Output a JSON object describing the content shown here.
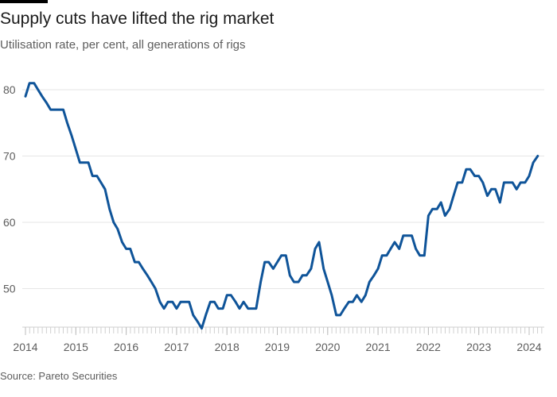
{
  "chart_data": {
    "type": "line",
    "title": "Supply cuts have lifted the rig market",
    "subtitle": "Utilisation rate, per cent, all generations of rigs",
    "source": "Source: Pareto Securities",
    "xlabel": "",
    "ylabel": "",
    "x_range": [
      2014.0,
      2024.6
    ],
    "ylim": [
      43,
      83
    ],
    "y_ticks": [
      80,
      70,
      60,
      50
    ],
    "x_ticks": [
      "2014",
      "2015",
      "2016",
      "2017",
      "2018",
      "2019",
      "2020",
      "2021",
      "2022",
      "2023",
      "2024"
    ],
    "grid": "horizontal",
    "line_color": "#0f5499",
    "series": [
      {
        "name": "",
        "points": [
          [
            2014.0,
            79
          ],
          [
            2014.08,
            81
          ],
          [
            2014.17,
            81
          ],
          [
            2014.25,
            80
          ],
          [
            2014.33,
            79
          ],
          [
            2014.42,
            78
          ],
          [
            2014.5,
            77
          ],
          [
            2014.58,
            77
          ],
          [
            2014.67,
            77
          ],
          [
            2014.75,
            77
          ],
          [
            2014.83,
            75
          ],
          [
            2014.92,
            73
          ],
          [
            2015.0,
            71
          ],
          [
            2015.08,
            69
          ],
          [
            2015.17,
            69
          ],
          [
            2015.25,
            69
          ],
          [
            2015.33,
            67
          ],
          [
            2015.42,
            67
          ],
          [
            2015.5,
            66
          ],
          [
            2015.58,
            65
          ],
          [
            2015.67,
            62
          ],
          [
            2015.75,
            60
          ],
          [
            2015.83,
            59
          ],
          [
            2015.92,
            57
          ],
          [
            2016.0,
            56
          ],
          [
            2016.08,
            56
          ],
          [
            2016.17,
            54
          ],
          [
            2016.25,
            54
          ],
          [
            2016.33,
            53
          ],
          [
            2016.42,
            52
          ],
          [
            2016.5,
            51
          ],
          [
            2016.58,
            50
          ],
          [
            2016.67,
            48
          ],
          [
            2016.75,
            47
          ],
          [
            2016.83,
            48
          ],
          [
            2016.92,
            48
          ],
          [
            2017.0,
            47
          ],
          [
            2017.08,
            48
          ],
          [
            2017.17,
            48
          ],
          [
            2017.25,
            48
          ],
          [
            2017.33,
            46
          ],
          [
            2017.42,
            45
          ],
          [
            2017.5,
            44
          ],
          [
            2017.58,
            46
          ],
          [
            2017.67,
            48
          ],
          [
            2017.75,
            48
          ],
          [
            2017.83,
            47
          ],
          [
            2017.92,
            47
          ],
          [
            2018.0,
            49
          ],
          [
            2018.08,
            49
          ],
          [
            2018.17,
            48
          ],
          [
            2018.25,
            47
          ],
          [
            2018.33,
            48
          ],
          [
            2018.42,
            47
          ],
          [
            2018.5,
            47
          ],
          [
            2018.58,
            47
          ],
          [
            2018.67,
            51
          ],
          [
            2018.75,
            54
          ],
          [
            2018.83,
            54
          ],
          [
            2018.92,
            53
          ],
          [
            2019.0,
            54
          ],
          [
            2019.08,
            55
          ],
          [
            2019.17,
            55
          ],
          [
            2019.25,
            52
          ],
          [
            2019.33,
            51
          ],
          [
            2019.42,
            51
          ],
          [
            2019.5,
            52
          ],
          [
            2019.58,
            52
          ],
          [
            2019.67,
            53
          ],
          [
            2019.75,
            56
          ],
          [
            2019.83,
            57
          ],
          [
            2019.92,
            53
          ],
          [
            2020.0,
            51
          ],
          [
            2020.08,
            49
          ],
          [
            2020.17,
            46
          ],
          [
            2020.25,
            46
          ],
          [
            2020.33,
            47
          ],
          [
            2020.42,
            48
          ],
          [
            2020.5,
            48
          ],
          [
            2020.58,
            49
          ],
          [
            2020.67,
            48
          ],
          [
            2020.75,
            49
          ],
          [
            2020.83,
            51
          ],
          [
            2020.92,
            52
          ],
          [
            2021.0,
            53
          ],
          [
            2021.08,
            55
          ],
          [
            2021.17,
            55
          ],
          [
            2021.25,
            56
          ],
          [
            2021.33,
            57
          ],
          [
            2021.42,
            56
          ],
          [
            2021.5,
            58
          ],
          [
            2021.58,
            58
          ],
          [
            2021.67,
            58
          ],
          [
            2021.75,
            56
          ],
          [
            2021.83,
            55
          ],
          [
            2021.92,
            55
          ],
          [
            2022.0,
            61
          ],
          [
            2022.08,
            62
          ],
          [
            2022.17,
            62
          ],
          [
            2022.25,
            63
          ],
          [
            2022.33,
            61
          ],
          [
            2022.42,
            62
          ],
          [
            2022.5,
            64
          ],
          [
            2022.58,
            66
          ],
          [
            2022.67,
            66
          ],
          [
            2022.75,
            68
          ],
          [
            2022.83,
            68
          ],
          [
            2022.92,
            67
          ],
          [
            2023.0,
            67
          ],
          [
            2023.08,
            66
          ],
          [
            2023.17,
            64
          ],
          [
            2023.25,
            65
          ],
          [
            2023.33,
            65
          ],
          [
            2023.42,
            63
          ],
          [
            2023.5,
            66
          ],
          [
            2023.58,
            66
          ],
          [
            2023.67,
            66
          ],
          [
            2023.75,
            65
          ],
          [
            2023.83,
            66
          ],
          [
            2023.92,
            66
          ],
          [
            2024.0,
            67
          ],
          [
            2024.08,
            69
          ],
          [
            2024.17,
            70
          ]
        ]
      }
    ]
  }
}
